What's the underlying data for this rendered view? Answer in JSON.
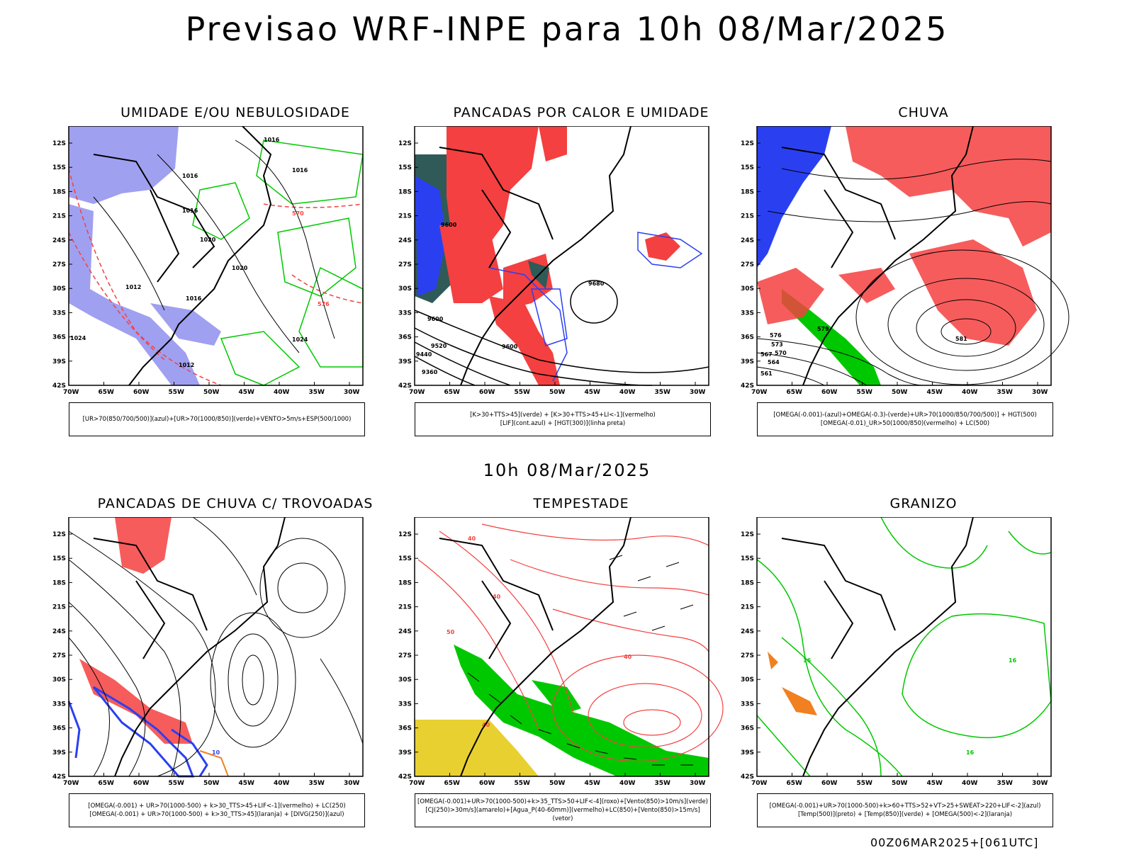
{
  "header": {
    "title": "Previsao WRF-INPE  para 10h 08/Mar/2025"
  },
  "middle": {
    "subtitle": "10h 08/Mar/2025"
  },
  "footer": {
    "run": "00Z06MAR2025+[061UTC]"
  },
  "axes": {
    "y_labels": [
      "12S",
      "15S",
      "18S",
      "21S",
      "24S",
      "27S",
      "30S",
      "33S",
      "36S",
      "39S",
      "42S"
    ],
    "x_labels": [
      "70W",
      "65W",
      "60W",
      "55W",
      "50W",
      "45W",
      "40W",
      "35W",
      "30W"
    ]
  },
  "panels": [
    {
      "title": "UMIDADE E/OU NEBULOSIDADE",
      "legend": [
        "[UR>70(850/700/500)](azul)+[UR>70(1000/850)](verde)+VENTO>5m/s+ESP(500/1000)"
      ],
      "labels": [
        "1016",
        "1016",
        "1016",
        "1020",
        "1020",
        "1012",
        "1016",
        "1024",
        "1024",
        "1012",
        "1016",
        "570",
        "576"
      ]
    },
    {
      "title": "PANCADAS POR CALOR E UMIDADE",
      "legend": [
        "[K>30+TTS>45](verde) + [K>30+TTS>45+LI<-1](vermelho)",
        "[LIF](cont.azul) + [HGT(300)](linha preta)"
      ],
      "labels": [
        "9680",
        "9600",
        "9600",
        "9520",
        "9440",
        "9360",
        "9600"
      ]
    },
    {
      "title": "CHUVA",
      "legend": [
        "[OMEGA(-0.001)-(azul)+OMEGA(-0.3)-(verde)+UR>70(1000/850/700/500)] + HGT(500)",
        "[OMEGA(-0.01)_UR>50(1000/850)(vermelho) + LC(500)"
      ],
      "labels": [
        "576",
        "573",
        "570",
        "567",
        "564",
        "561",
        "581",
        "579"
      ]
    },
    {
      "title": "PANCADAS DE CHUVA C/ TROVOADAS",
      "legend": [
        "[OMEGA(-0.001) + UR>70(1000-500) + k>30_TTS>45+LIF<-1](vermelho) + LC(250)",
        "[OMEGA(-0.001) + UR>70(1000-500) + k>30_TTS>45](laranja) + [DIVG(250)](azul)"
      ],
      "labels": [
        "10"
      ]
    },
    {
      "title": "TEMPESTADE",
      "legend": [
        "[OMEGA(-0.001)+UR>70(1000-500)+k>35_TTS>50+LIF<-4](roxo)+[Vento(850)>10m/s](verde)",
        "[CJ(250)>30m/s](amarelo)+[Agua_P(40-60mm)](vermelho)+LC(850)+[Vento(850)>15m/s](vetor)"
      ],
      "labels": [
        "40",
        "40",
        "40",
        "50",
        "40"
      ]
    },
    {
      "title": "GRANIZO",
      "legend": [
        "[OMEGA(-0.001)+UR>70(1000-500)+k>60+TTS>52+VT>25+SWEAT>220+LIF<-2](azul)",
        "[Temp(500)](preto) + [Temp(850)](verde) + [OMEGA(500)<-2](laranja)"
      ],
      "labels": [
        "16",
        "16",
        "16"
      ]
    }
  ],
  "colors": {
    "red": "#f44040",
    "blue": "#2a40f0",
    "green": "#00c800",
    "lavender": "#a0a0f0",
    "darkteal": "#2f5a58",
    "yellow": "#e8d030",
    "orange": "#f08020"
  }
}
